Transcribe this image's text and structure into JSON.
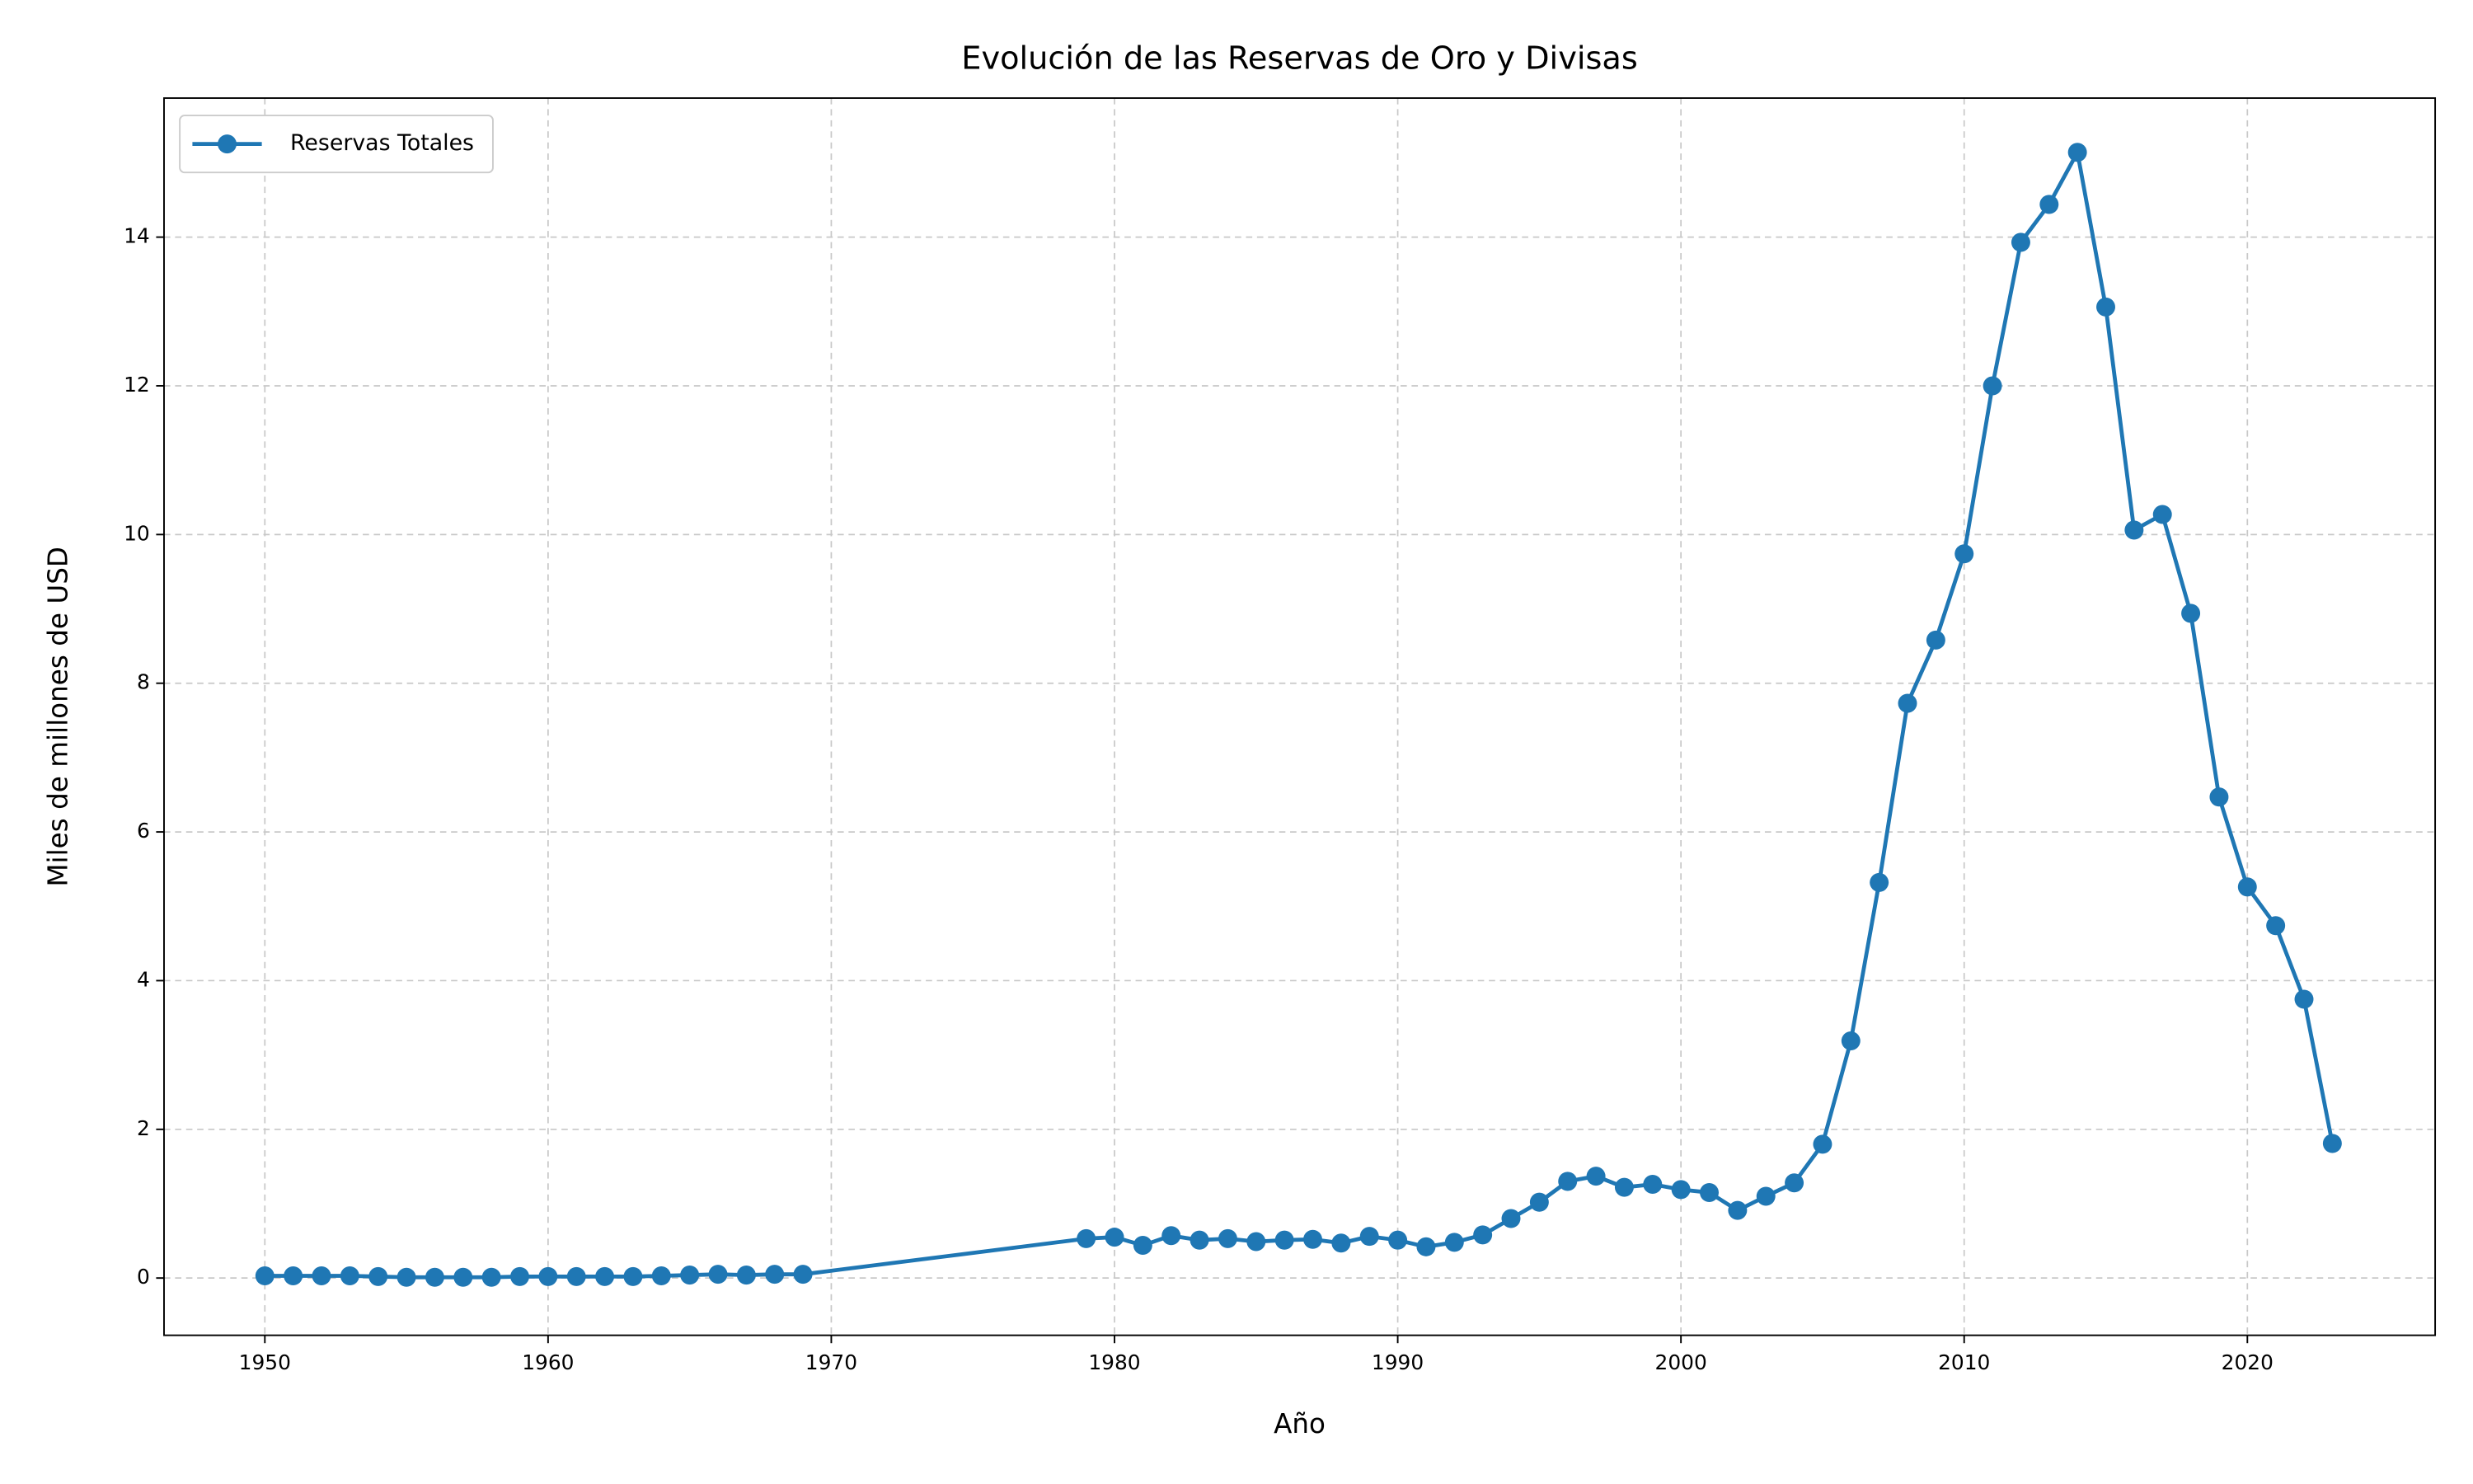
{
  "chart_data": {
    "type": "line",
    "title": "Evolución de las Reservas de Oro y Divisas",
    "xlabel": "Año",
    "ylabel": "Miles de millones de USD",
    "x": [
      1950,
      1951,
      1952,
      1953,
      1954,
      1955,
      1956,
      1957,
      1958,
      1959,
      1960,
      1961,
      1962,
      1963,
      1964,
      1965,
      1966,
      1967,
      1968,
      1969,
      1979,
      1980,
      1981,
      1982,
      1983,
      1984,
      1985,
      1986,
      1987,
      1988,
      1989,
      1990,
      1991,
      1992,
      1993,
      1994,
      1995,
      1996,
      1997,
      1998,
      1999,
      2000,
      2001,
      2002,
      2003,
      2004,
      2005,
      2006,
      2007,
      2008,
      2009,
      2010,
      2011,
      2012,
      2013,
      2014,
      2015,
      2016,
      2017,
      2018,
      2019,
      2020,
      2021,
      2022,
      2023
    ],
    "series": [
      {
        "name": "Reservas Totales",
        "color": "#1f77b4",
        "values": [
          0.03,
          0.03,
          0.03,
          0.03,
          0.02,
          0.01,
          0.01,
          0.01,
          0.01,
          0.02,
          0.02,
          0.02,
          0.02,
          0.02,
          0.03,
          0.04,
          0.05,
          0.04,
          0.05,
          0.05,
          0.53,
          0.55,
          0.44,
          0.57,
          0.51,
          0.53,
          0.49,
          0.51,
          0.52,
          0.47,
          0.56,
          0.51,
          0.42,
          0.48,
          0.58,
          0.8,
          1.02,
          1.3,
          1.37,
          1.22,
          1.26,
          1.19,
          1.15,
          0.91,
          1.1,
          1.28,
          1.8,
          3.19,
          5.32,
          7.73,
          8.58,
          9.74,
          12.0,
          13.93,
          14.44,
          15.14,
          13.06,
          10.06,
          10.27,
          8.94,
          6.47,
          5.26,
          4.74,
          3.75,
          1.81
        ]
      }
    ],
    "xlim": [
      1946.44,
      2026.63
    ],
    "xticks": [
      1950,
      1960,
      1970,
      1980,
      1990,
      2000,
      2010,
      2020
    ],
    "ylim": [
      -0.77,
      15.87
    ],
    "yticks": [
      0,
      2,
      4,
      6,
      8,
      10,
      12,
      14
    ],
    "grid": true,
    "legend": "upper left"
  }
}
